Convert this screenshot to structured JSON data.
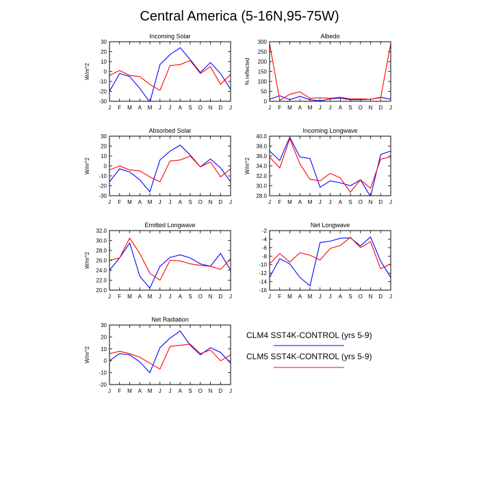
{
  "figure": {
    "title": "Central America (5-16N,95-75W)",
    "legend": [
      {
        "label": "CLM4 SST4K-CONTROL (yrs 5-9)",
        "color": "#0000ff"
      },
      {
        "label": "CLM5 SST4K-CONTROL (yrs 5-9)",
        "color": "#ff0000"
      }
    ]
  },
  "chart_data": [
    {
      "type": "line",
      "title": "Incoming Solar",
      "ylabel": "W/m^2",
      "ylim": [
        -30,
        30
      ],
      "yticks": [
        "-30",
        "-20",
        "-10",
        "0",
        "10",
        "20",
        "30"
      ],
      "categories": [
        "J",
        "F",
        "M",
        "A",
        "M",
        "J",
        "J",
        "A",
        "S",
        "O",
        "N",
        "D",
        "J"
      ],
      "series": [
        {
          "name": "CLM4 SST4K-CONTROL (yrs 5-9)",
          "color": "#0000ff",
          "values": [
            -20,
            -2,
            -5,
            -17,
            -31,
            7,
            17,
            24,
            12,
            -1,
            9,
            -2,
            -18
          ]
        },
        {
          "name": "CLM5 SST4K-CONTROL (yrs 5-9)",
          "color": "#ff0000",
          "values": [
            -4,
            1,
            -4,
            -5,
            -13,
            -19,
            6,
            7,
            11,
            -2,
            5,
            -13,
            -3
          ]
        }
      ]
    },
    {
      "type": "line",
      "title": "Albedo",
      "ylabel": "% reflected",
      "ylim": [
        0,
        300
      ],
      "yticks": [
        "0",
        "50",
        "100",
        "150",
        "200",
        "250",
        "300"
      ],
      "categories": [
        "J",
        "F",
        "M",
        "A",
        "M",
        "J",
        "J",
        "A",
        "S",
        "O",
        "N",
        "D",
        "J"
      ],
      "series": [
        {
          "name": "CLM4 SST4K-CONTROL (yrs 5-9)",
          "color": "#0000ff",
          "values": [
            10,
            28,
            8,
            25,
            8,
            2,
            12,
            16,
            8,
            8,
            10,
            20,
            10
          ]
        },
        {
          "name": "CLM5 SST4K-CONTROL (yrs 5-9)",
          "color": "#ff0000",
          "values": [
            290,
            5,
            35,
            48,
            15,
            18,
            15,
            20,
            12,
            12,
            10,
            18,
            290
          ]
        }
      ]
    },
    {
      "type": "line",
      "title": "Absorbed Solar",
      "ylabel": "W/m^2",
      "ylim": [
        -30,
        30
      ],
      "yticks": [
        "-30",
        "-20",
        "-10",
        "0",
        "10",
        "20",
        "30"
      ],
      "categories": [
        "J",
        "F",
        "M",
        "A",
        "M",
        "J",
        "J",
        "A",
        "S",
        "O",
        "N",
        "D",
        "J"
      ],
      "series": [
        {
          "name": "CLM4 SST4K-CONTROL (yrs 5-9)",
          "color": "#0000ff",
          "values": [
            -16,
            -3,
            -6,
            -14,
            -26,
            6,
            15,
            21,
            11,
            -1,
            7,
            -2,
            -16
          ]
        },
        {
          "name": "CLM5 SST4K-CONTROL (yrs 5-9)",
          "color": "#ff0000",
          "values": [
            -4,
            0,
            -4,
            -5,
            -11,
            -16,
            5,
            6,
            10,
            -1,
            4,
            -11,
            -3
          ]
        }
      ]
    },
    {
      "type": "line",
      "title": "Incoming Longwave",
      "ylabel": "W/m^2",
      "ylim": [
        28.0,
        40.0
      ],
      "yticks": [
        "28.0",
        "30.0",
        "32.0",
        "34.0",
        "36.0",
        "38.0",
        "40.0"
      ],
      "categories": [
        "J",
        "F",
        "M",
        "A",
        "M",
        "J",
        "J",
        "A",
        "S",
        "O",
        "N",
        "D",
        "J"
      ],
      "series": [
        {
          "name": "CLM4 SST4K-CONTROL (yrs 5-9)",
          "color": "#0000ff",
          "values": [
            37.0,
            35.1,
            39.8,
            35.8,
            35.5,
            29.7,
            31.0,
            30.6,
            30.0,
            31.2,
            27.8,
            36.3,
            37.0
          ]
        },
        {
          "name": "CLM5 SST4K-CONTROL (yrs 5-9)",
          "color": "#ff0000",
          "values": [
            35.8,
            33.6,
            39.5,
            34.4,
            31.3,
            31.0,
            32.5,
            31.6,
            28.7,
            31.2,
            29.5,
            35.4,
            35.8
          ]
        }
      ]
    },
    {
      "type": "line",
      "title": "Emitted Longwave",
      "ylabel": "W/m^2",
      "ylim": [
        20.0,
        32.0
      ],
      "yticks": [
        "20.0",
        "22.0",
        "24.0",
        "26.0",
        "28.0",
        "30.0",
        "32.0"
      ],
      "categories": [
        "J",
        "F",
        "M",
        "A",
        "M",
        "J",
        "J",
        "A",
        "S",
        "O",
        "N",
        "D",
        "J"
      ],
      "series": [
        {
          "name": "CLM4 SST4K-CONTROL (yrs 5-9)",
          "color": "#0000ff",
          "values": [
            24.0,
            26.5,
            29.5,
            22.8,
            20.4,
            24.8,
            26.6,
            27.1,
            26.5,
            25.3,
            24.8,
            27.4,
            24.0
          ]
        },
        {
          "name": "CLM5 SST4K-CONTROL (yrs 5-9)",
          "color": "#ff0000",
          "values": [
            26.0,
            26.5,
            30.5,
            27.4,
            23.4,
            22.0,
            26.0,
            25.9,
            25.3,
            25.0,
            24.8,
            24.2,
            26.3
          ]
        }
      ]
    },
    {
      "type": "line",
      "title": "Net Longwave",
      "ylabel": "",
      "ylim": [
        -16,
        -2
      ],
      "yticks": [
        "-16",
        "-14",
        "-12",
        "-10",
        "-8",
        "-6",
        "-4",
        "-2"
      ],
      "categories": [
        "J",
        "F",
        "M",
        "A",
        "M",
        "J",
        "J",
        "A",
        "S",
        "O",
        "N",
        "D",
        "J"
      ],
      "series": [
        {
          "name": "CLM4 SST4K-CONTROL (yrs 5-9)",
          "color": "#0000ff",
          "values": [
            -13.0,
            -8.6,
            -9.8,
            -13.0,
            -15.0,
            -4.8,
            -4.5,
            -3.8,
            -3.7,
            -5.6,
            -3.5,
            -9.2,
            -13.0
          ]
        },
        {
          "name": "CLM5 SST4K-CONTROL (yrs 5-9)",
          "color": "#ff0000",
          "values": [
            -9.8,
            -7.4,
            -9.4,
            -7.2,
            -7.8,
            -8.9,
            -6.2,
            -5.5,
            -3.6,
            -6.0,
            -4.6,
            -11.0,
            -9.8
          ]
        }
      ]
    },
    {
      "type": "line",
      "title": "Net Radiation",
      "ylabel": "W/m^2",
      "ylim": [
        -20,
        30
      ],
      "yticks": [
        "-20",
        "-10",
        "0",
        "10",
        "20",
        "30"
      ],
      "categories": [
        "J",
        "F",
        "M",
        "A",
        "M",
        "J",
        "J",
        "A",
        "S",
        "O",
        "N",
        "D",
        "J"
      ],
      "series": [
        {
          "name": "CLM4 SST4K-CONTROL (yrs 5-9)",
          "color": "#0000ff",
          "values": [
            0,
            6,
            5,
            -1,
            -10,
            11,
            19,
            25,
            13,
            5,
            11,
            7,
            -2
          ]
        },
        {
          "name": "CLM5 SST4K-CONTROL (yrs 5-9)",
          "color": "#ff0000",
          "values": [
            6,
            8,
            6,
            3,
            -2,
            -7,
            12,
            13,
            14,
            6,
            9,
            0,
            5
          ]
        }
      ]
    }
  ]
}
